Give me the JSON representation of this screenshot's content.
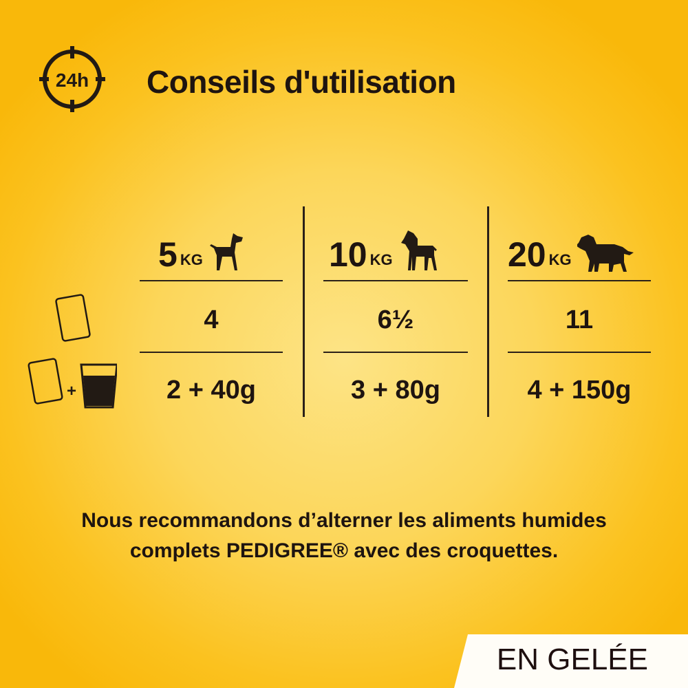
{
  "header": {
    "icon": "24h-clock-icon",
    "icon_text": "24h",
    "title": "Conseils d'utilisation"
  },
  "table": {
    "columns": [
      {
        "weight": "5",
        "unit": "KG",
        "icon": "small-dog-icon"
      },
      {
        "weight": "10",
        "unit": "KG",
        "icon": "terrier-dog-icon"
      },
      {
        "weight": "20",
        "unit": "KG",
        "icon": "large-dog-icon"
      }
    ],
    "rows": [
      {
        "icon": "pouch-icon",
        "values": [
          "4",
          "6½",
          "11"
        ]
      },
      {
        "icon": "pouch-plus-kibble-icon",
        "plus": "+",
        "values": [
          "2 + 40g",
          "3 + 80g",
          "4 + 150g"
        ]
      }
    ]
  },
  "recommendation": {
    "line1": "Nous recommandons d’alterner les aliments humides",
    "line2": "complets PEDIGREE® avec des croquettes."
  },
  "badge": "EN GELÉE",
  "colors": {
    "background": "#f9b80a",
    "text": "#1e1410"
  }
}
